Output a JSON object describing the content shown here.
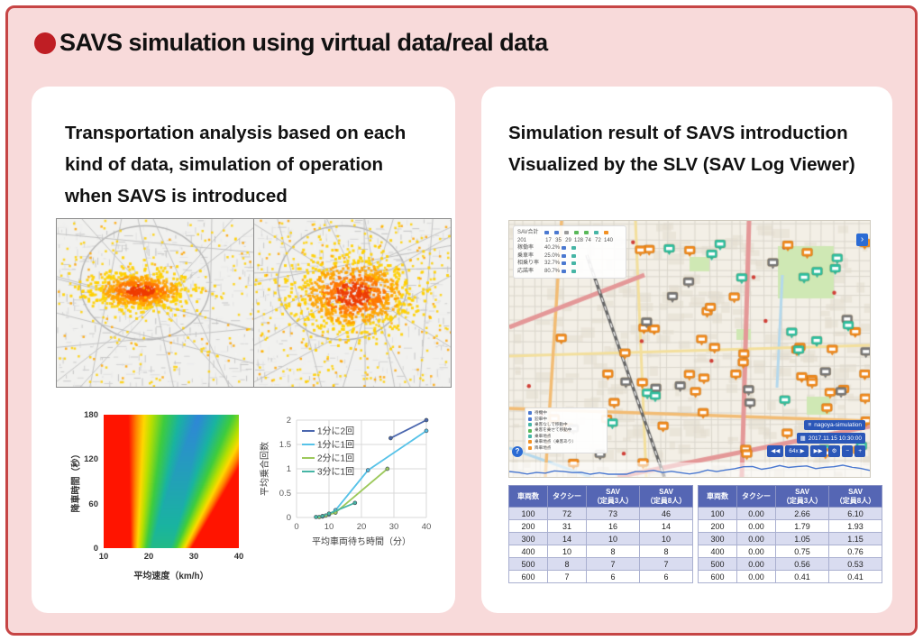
{
  "title": "SAVS simulation using virtual data/real data",
  "left_panel": {
    "heading_lines": [
      "Transportation analysis based on each",
      "kind of data, simulation of operation",
      "when SAVS is introduced"
    ]
  },
  "right_panel": {
    "heading_lines": [
      "Simulation result of SAVS introduction",
      "Visualized by the SLV (SAV Log Viewer)"
    ]
  },
  "slv": {
    "stats_panel": {
      "title": "SAV合計",
      "total": "201",
      "counts": [
        "17",
        "35",
        "29",
        "128",
        "74",
        "72",
        "140"
      ],
      "fleet_icon_colors": [
        "#4a78d0",
        "#4a78d0",
        "#9a9a9a",
        "#58b858",
        "#58b858",
        "#46b5a5",
        "#f29022"
      ],
      "metrics": [
        {
          "label": "稼働率",
          "value": "40.2%"
        },
        {
          "label": "乗車率",
          "value": "25.0%"
        },
        {
          "label": "相乗り率",
          "value": "32.7%"
        },
        {
          "label": "応諾率",
          "value": "80.7%"
        }
      ]
    },
    "legend_items": [
      {
        "label": "待機中",
        "color": "#4a78d0"
      },
      {
        "label": "迎車中",
        "color": "#4a78d0"
      },
      {
        "label": "乗客なしで移動中",
        "color": "#46b5a5"
      },
      {
        "label": "乗客を乗せて移動中",
        "color": "#58b858"
      },
      {
        "label": "乗車地点",
        "color": "#46b5a5"
      },
      {
        "label": "乗車地点（乗客あり）",
        "color": "#f29022"
      },
      {
        "label": "降車地点",
        "color": "#f29022"
      }
    ],
    "sim_badge": "nagoya-simulation",
    "datetime_badge": "2017.11.15 10:30:00",
    "controls": {
      "rewind": "◀◀",
      "speed": "64x ▶",
      "forward": "▶▶",
      "settings": "⚙",
      "zoom_out": "−",
      "zoom_in": "+"
    },
    "help_label": "?",
    "chevron_label": "›",
    "marker_colors": {
      "busy": "#f08a1e",
      "free": "#2fbfa0",
      "other": "#787878"
    }
  },
  "tables": {
    "headers": [
      {
        "main": "車両数",
        "sub": ""
      },
      {
        "main": "タクシー",
        "sub": ""
      },
      {
        "main": "SAV",
        "sub": "（定員3人）"
      },
      {
        "main": "SAV",
        "sub": "（定員8人）"
      }
    ],
    "left": {
      "rows": [
        [
          "100",
          "72",
          "73",
          "46"
        ],
        [
          "200",
          "31",
          "16",
          "14"
        ],
        [
          "300",
          "14",
          "10",
          "10"
        ],
        [
          "400",
          "10",
          "8",
          "8"
        ],
        [
          "500",
          "8",
          "7",
          "7"
        ],
        [
          "600",
          "7",
          "6",
          "6"
        ]
      ]
    },
    "right": {
      "rows": [
        [
          "100",
          "0.00",
          "2.66",
          "6.10"
        ],
        [
          "200",
          "0.00",
          "1.79",
          "1.93"
        ],
        [
          "300",
          "0.00",
          "1.05",
          "1.15"
        ],
        [
          "400",
          "0.00",
          "0.75",
          "0.76"
        ],
        [
          "500",
          "0.00",
          "0.56",
          "0.53"
        ],
        [
          "600",
          "0.00",
          "0.41",
          "0.41"
        ]
      ]
    }
  },
  "chart_data": [
    {
      "type": "heatmap",
      "title": "",
      "xlabel": "平均速度（km/h）",
      "ylabel": "降車時間（秒）",
      "xlim": [
        10,
        40
      ],
      "ylim": [
        0,
        180
      ],
      "x_ticks": [
        10,
        20,
        30,
        40
      ],
      "y_ticks": [
        0,
        60,
        120,
        180
      ],
      "description": "Diagonal rainbow bands from red (left/bottom-right) through yellow and green to a blue optimum around 25-31 km/h in the upper middle",
      "color_stops": [
        [
          0.0,
          "#2f86d8"
        ],
        [
          0.25,
          "#19b4a0"
        ],
        [
          0.45,
          "#3ecc3e"
        ],
        [
          0.62,
          "#b8e000"
        ],
        [
          0.72,
          "#ffd800"
        ],
        [
          0.82,
          "#ff8800"
        ],
        [
          0.93,
          "#ff1400"
        ]
      ]
    },
    {
      "type": "line",
      "title": "",
      "xlabel": "平均車両待ち時間（分）",
      "ylabel": "平均乗合回数",
      "xlim": [
        0,
        40
      ],
      "ylim": [
        0,
        2
      ],
      "x_ticks": [
        0,
        10,
        20,
        30,
        40
      ],
      "y_ticks": [
        0,
        0.5,
        1,
        1.5,
        2
      ],
      "grid": true,
      "legend_position": "top-left-inside",
      "series": [
        {
          "name": "1分に2回",
          "color": "#4a66ae",
          "x": [
            29,
            40
          ],
          "y": [
            1.63,
            2.0
          ]
        },
        {
          "name": "1分に1回",
          "color": "#56c2e8",
          "x": [
            8,
            10,
            12,
            22,
            40
          ],
          "y": [
            0.02,
            0.06,
            0.15,
            0.97,
            1.78
          ]
        },
        {
          "name": "2分に1回",
          "color": "#9dc95c",
          "x": [
            7,
            9,
            12,
            28
          ],
          "y": [
            0.01,
            0.04,
            0.1,
            1.0
          ]
        },
        {
          "name": "3分に1回",
          "color": "#46b5a5",
          "x": [
            6,
            8,
            10,
            18
          ],
          "y": [
            0.01,
            0.03,
            0.08,
            0.3
          ]
        }
      ]
    }
  ]
}
